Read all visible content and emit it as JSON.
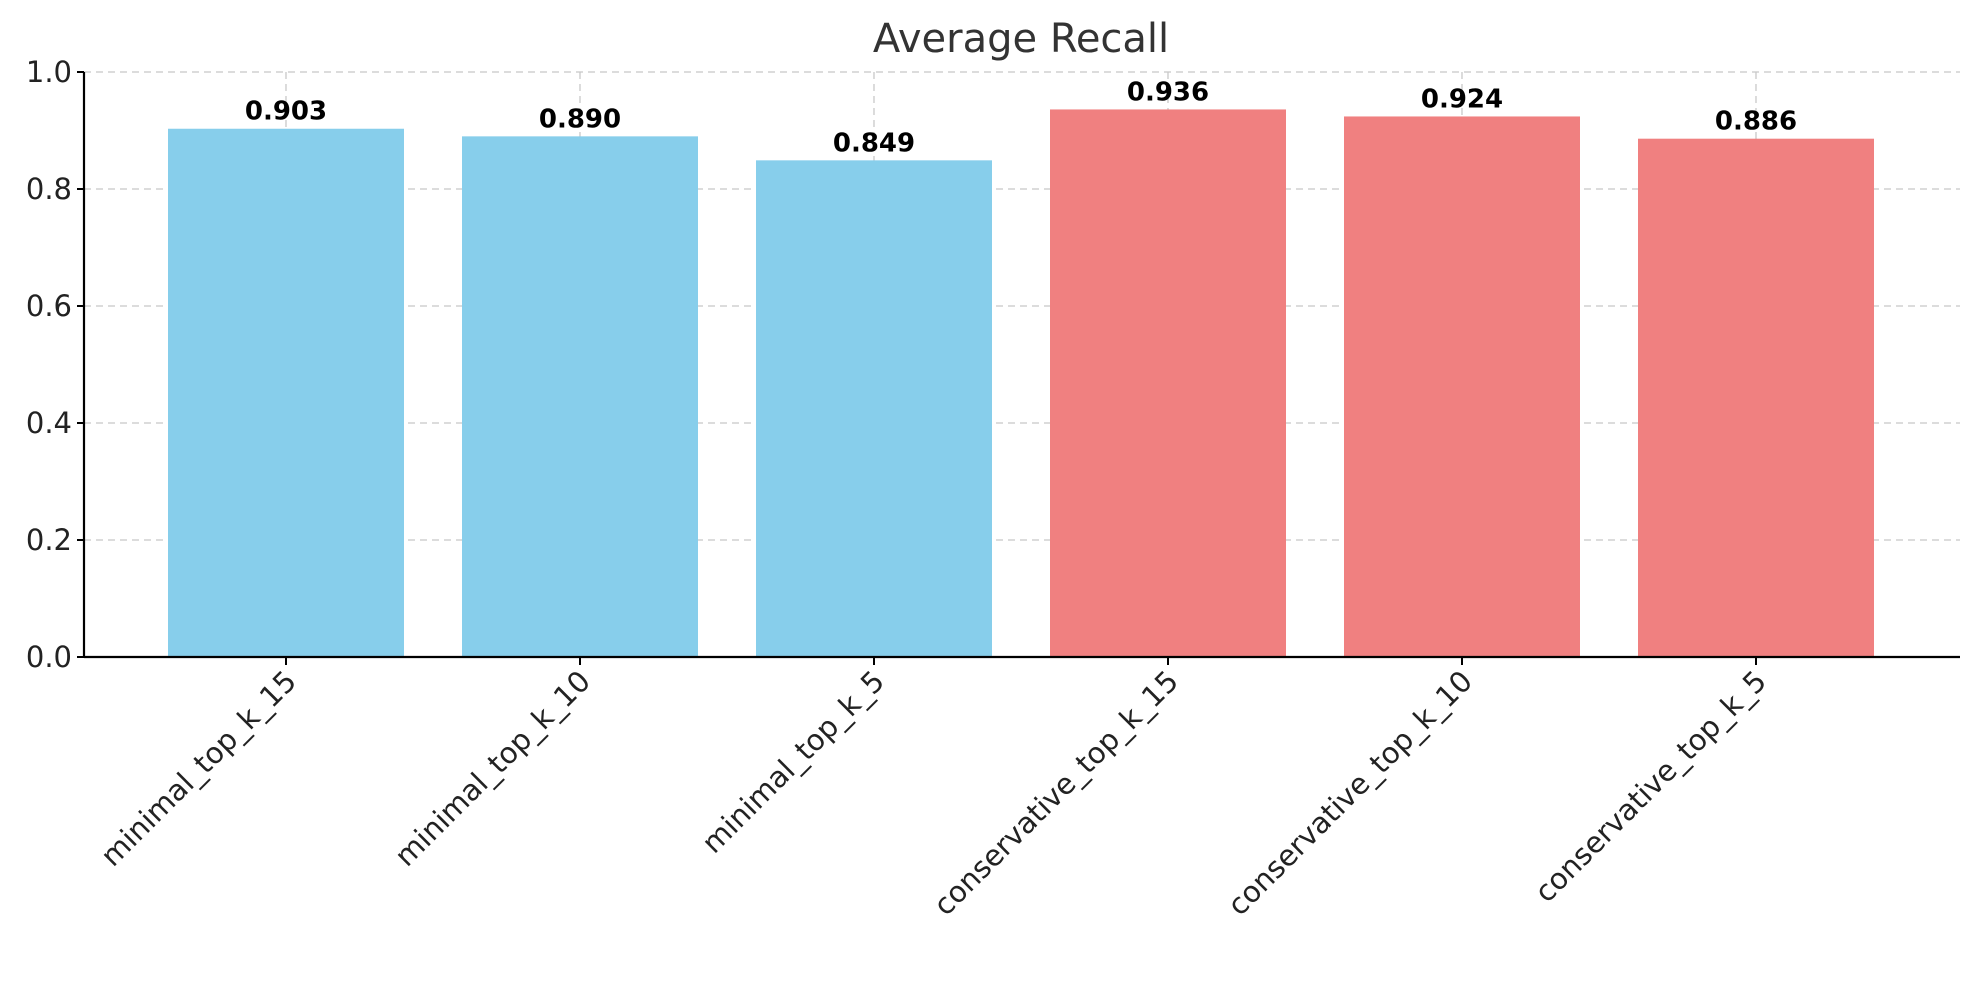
{
  "chart_data": {
    "type": "bar",
    "title": "Average Recall",
    "xlabel": "",
    "ylabel": "",
    "categories": [
      "minimal_top_k_15",
      "minimal_top_k_10",
      "minimal_top_k_5",
      "conservative_top_k_15",
      "conservative_top_k_10",
      "conservative_top_k_5"
    ],
    "values": [
      0.903,
      0.89,
      0.849,
      0.936,
      0.924,
      0.886
    ],
    "value_labels": [
      "0.903",
      "0.890",
      "0.849",
      "0.936",
      "0.924",
      "0.886"
    ],
    "bar_colors": [
      "#87ceeb",
      "#87ceeb",
      "#87ceeb",
      "#f08080",
      "#f08080",
      "#f08080"
    ],
    "ylim": [
      0,
      1.0
    ],
    "yticks": [
      0.0,
      0.2,
      0.4,
      0.6,
      0.8,
      1.0
    ],
    "ytick_labels": [
      "0.0",
      "0.2",
      "0.4",
      "0.6",
      "0.8",
      "1.0"
    ],
    "grid": true,
    "grid_style": "dashed",
    "x_tick_rotation": "45 degrees",
    "legend": "none"
  }
}
